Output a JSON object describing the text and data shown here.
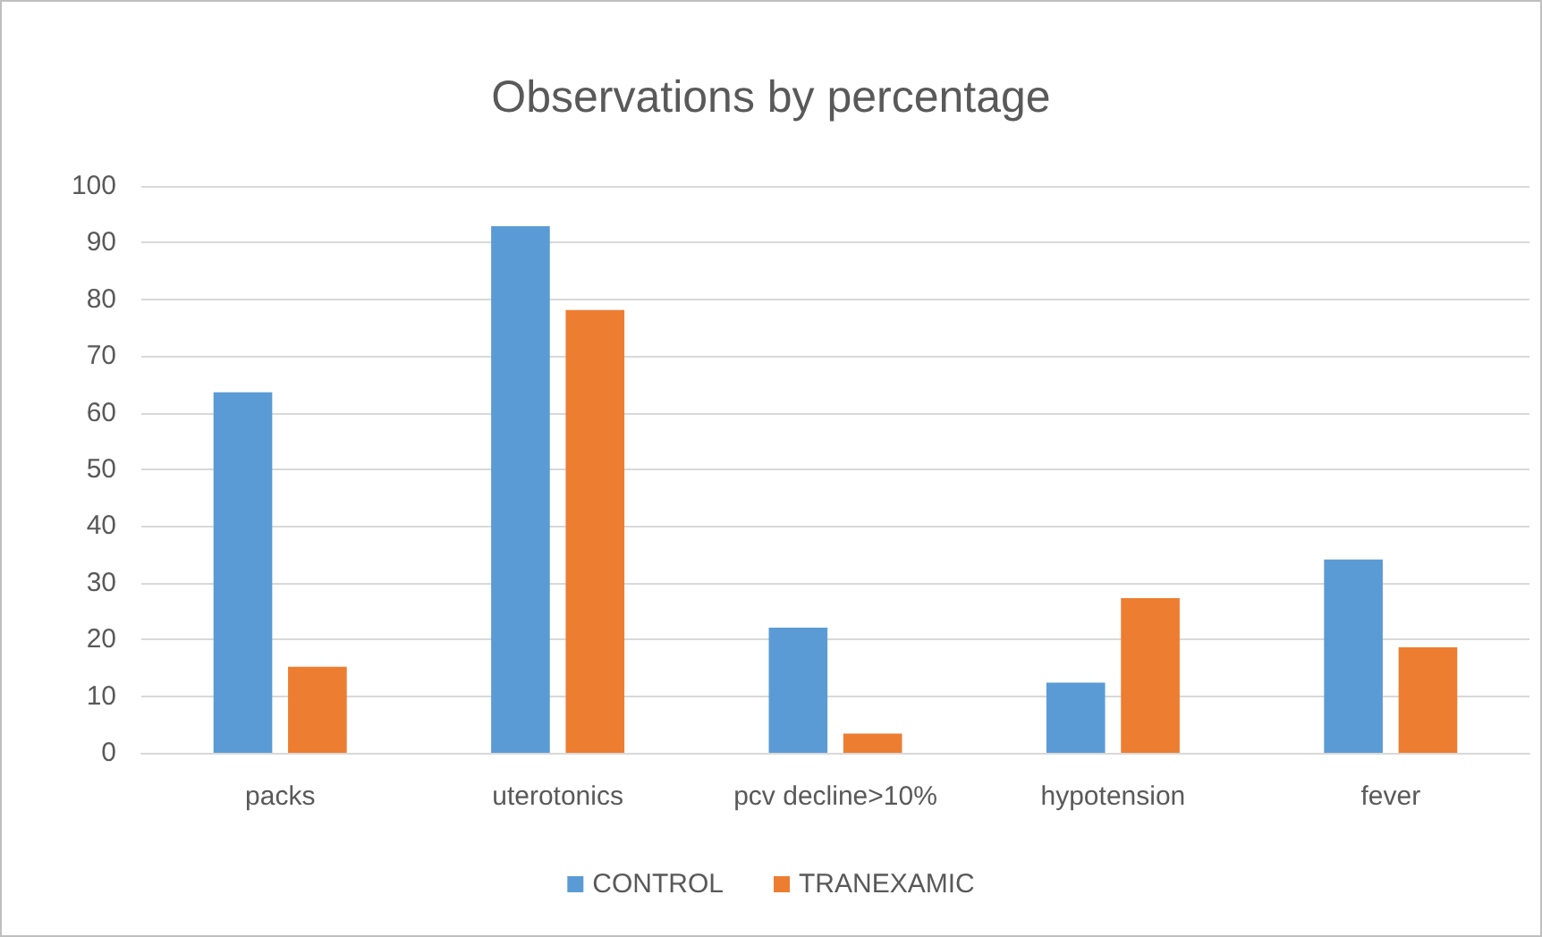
{
  "chart_data": {
    "type": "bar",
    "title": "Observations by percentage",
    "categories": [
      "packs",
      "uterotonics",
      "pcv decline>10%",
      "hypotension",
      "fever"
    ],
    "series": [
      {
        "name": "CONTROL",
        "color": "#5b9bd5",
        "values": [
          63.6,
          92.9,
          22.1,
          12.4,
          34.1
        ]
      },
      {
        "name": "TRANEXAMIC",
        "color": "#ed7d31",
        "values": [
          15.2,
          78.1,
          3.4,
          27.3,
          18.6
        ]
      }
    ],
    "ylim": [
      0,
      100
    ],
    "yticks": [
      0,
      10,
      20,
      30,
      40,
      50,
      60,
      70,
      80,
      90,
      100
    ],
    "grid": "y",
    "legend": "bottom"
  }
}
